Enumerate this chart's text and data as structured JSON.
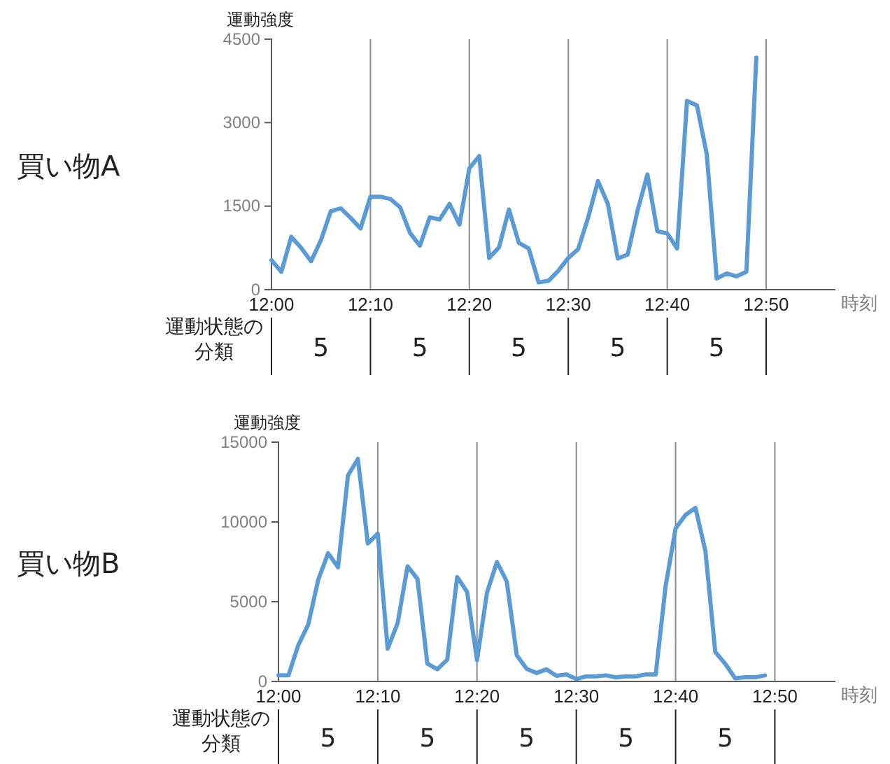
{
  "chart_data": [
    {
      "type": "line",
      "title": "買い物A",
      "ylabel": "運動強度",
      "xlabel": "時刻",
      "grid": "x",
      "marker": "none",
      "line_style": "solid",
      "annotations": [
        "運動状態の分類",
        "5",
        "5",
        "5",
        "5",
        "5"
      ],
      "xlim": [
        12,
        12.95
      ],
      "ylim": [
        0,
        4500
      ],
      "yticks": [
        0,
        1500,
        3000,
        4500
      ],
      "xticks": [
        {
          "value": 12,
          "label": "12:00"
        },
        {
          "value": 12.1667,
          "label": "12:10"
        },
        {
          "value": 12.3333,
          "label": "12:20"
        },
        {
          "value": 12.5,
          "label": "12:30"
        },
        {
          "value": 12.6667,
          "label": "12:40"
        },
        {
          "value": 12.8333,
          "label": "12:50"
        }
      ],
      "x": [
        12,
        12.0167,
        12.0333,
        12.05,
        12.0667,
        12.0833,
        12.1,
        12.1167,
        12.1333,
        12.15,
        12.1667,
        12.1833,
        12.2,
        12.2167,
        12.2333,
        12.25,
        12.2667,
        12.2833,
        12.3,
        12.3167,
        12.3333,
        12.35,
        12.3667,
        12.3833,
        12.4,
        12.4167,
        12.4333,
        12.45,
        12.4667,
        12.4833,
        12.5,
        12.5167,
        12.5333,
        12.55,
        12.5667,
        12.5833,
        12.6,
        12.6167,
        12.6333,
        12.65,
        12.6667,
        12.6833,
        12.7,
        12.7167,
        12.7333,
        12.75,
        12.7667,
        12.7833,
        12.8,
        12.8167
      ],
      "series": [
        {
          "color": "#5b9bd5",
          "values": [
            530,
            320,
            950,
            750,
            510,
            890,
            1410,
            1460,
            1290,
            1100,
            1670,
            1670,
            1630,
            1480,
            1020,
            790,
            1300,
            1260,
            1540,
            1170,
            2180,
            2400,
            570,
            760,
            1440,
            840,
            740,
            130,
            160,
            340,
            570,
            730,
            1290,
            1950,
            1540,
            560,
            630,
            1420,
            2070,
            1050,
            1010,
            740,
            3390,
            3310,
            2430,
            200,
            290,
            240,
            320,
            4170
          ]
        }
      ]
    },
    {
      "type": "line",
      "title": "買い物B",
      "ylabel": "運動強度",
      "xlabel": "時刻",
      "grid": "x",
      "marker": "none",
      "line_style": "solid",
      "annotations": [
        "運動状態の分類",
        "5",
        "5",
        "5",
        "5",
        "5"
      ],
      "xlim": [
        12,
        12.935
      ],
      "ylim": [
        0,
        15000
      ],
      "yticks": [
        0,
        5000,
        10000,
        15000
      ],
      "xticks": [
        {
          "value": 12,
          "label": "12:00"
        },
        {
          "value": 12.1667,
          "label": "12:10"
        },
        {
          "value": 12.3333,
          "label": "12:20"
        },
        {
          "value": 12.5,
          "label": "12:30"
        },
        {
          "value": 12.6667,
          "label": "12:40"
        },
        {
          "value": 12.8333,
          "label": "12:50"
        }
      ],
      "x": [
        12,
        12.0167,
        12.0333,
        12.05,
        12.0667,
        12.0833,
        12.1,
        12.1167,
        12.1333,
        12.15,
        12.1667,
        12.1833,
        12.2,
        12.2167,
        12.2333,
        12.25,
        12.2667,
        12.2833,
        12.3,
        12.3167,
        12.3333,
        12.35,
        12.3667,
        12.3833,
        12.4,
        12.4167,
        12.4333,
        12.45,
        12.4667,
        12.4833,
        12.5,
        12.5167,
        12.5333,
        12.55,
        12.5667,
        12.5833,
        12.6,
        12.6167,
        12.6333,
        12.65,
        12.6667,
        12.6833,
        12.7,
        12.7167,
        12.7333,
        12.75,
        12.7667,
        12.7833,
        12.8,
        12.8167
      ],
      "series": [
        {
          "color": "#5b9bd5",
          "values": [
            380,
            380,
            2280,
            3570,
            6370,
            8040,
            7160,
            12920,
            13950,
            8650,
            9270,
            2050,
            3650,
            7220,
            6430,
            1110,
            760,
            1370,
            6550,
            5610,
            1340,
            5560,
            7490,
            6260,
            1640,
            790,
            530,
            760,
            350,
            440,
            150,
            320,
            320,
            380,
            260,
            320,
            320,
            440,
            440,
            5990,
            9590,
            10440,
            10880,
            8190,
            1840,
            1110,
            200,
            260,
            260,
            380
          ]
        }
      ]
    }
  ]
}
